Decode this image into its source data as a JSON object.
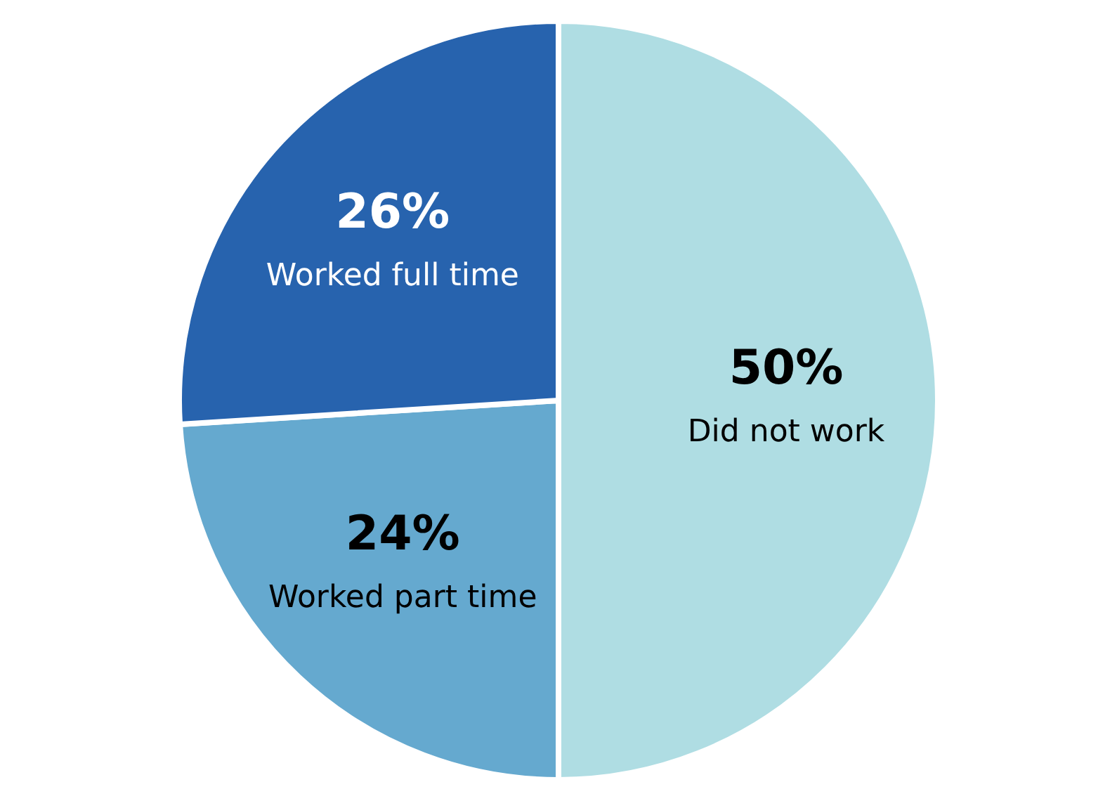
{
  "chart_data": {
    "type": "pie",
    "categories": [
      "Did not work",
      "Worked part time",
      "Worked full time"
    ],
    "values": [
      50,
      24,
      26
    ],
    "colors": [
      "#afdde3",
      "#65a9cf",
      "#2763ae"
    ],
    "value_labels": [
      "50%",
      "24%",
      "26%"
    ]
  }
}
